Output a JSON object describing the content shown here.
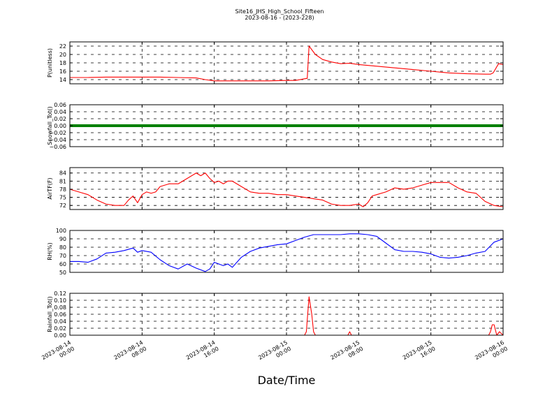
{
  "title": "Site16_JHS_High_School_Fifteen",
  "subtitle": "2023-08-16 - (2023-228)",
  "xlabel": "Date/Time",
  "x_ticks": [
    {
      "t": 0,
      "line1": "2023-08-14",
      "line2": "00:00"
    },
    {
      "t": 8,
      "line1": "2023-08-14",
      "line2": "08:00"
    },
    {
      "t": 16,
      "line1": "2023-08-14",
      "line2": "16:00"
    },
    {
      "t": 24,
      "line1": "2023-08-15",
      "line2": "00:00"
    },
    {
      "t": 32,
      "line1": "2023-08-15",
      "line2": "08:00"
    },
    {
      "t": 40,
      "line1": "2023-08-15",
      "line2": "16:00"
    },
    {
      "t": 48,
      "line1": "2023-08-16",
      "line2": "00:00"
    }
  ],
  "chart_data": [
    {
      "type": "line",
      "ylabel": "P(unitless)",
      "ylim": [
        13,
        23
      ],
      "yticks": [
        14,
        16,
        18,
        20,
        22
      ],
      "ytick_labels": [
        "14",
        "16",
        "18",
        "20",
        "22"
      ],
      "color": "#ff0000",
      "grid": true,
      "x_hours": [
        0,
        2,
        4,
        6,
        8,
        10,
        12,
        14,
        15,
        16,
        18,
        20,
        22,
        24,
        25,
        26,
        26.3,
        26.5,
        27.2,
        28,
        29,
        30,
        31,
        32,
        34,
        36,
        38,
        40,
        42,
        44,
        46,
        46.6,
        46.9,
        47.5,
        48
      ],
      "values": [
        14.5,
        14.5,
        14.6,
        14.6,
        14.6,
        14.6,
        14.5,
        14.4,
        14.0,
        13.7,
        13.7,
        13.7,
        13.7,
        13.8,
        13.8,
        14.2,
        14.3,
        22.0,
        20.0,
        18.8,
        18.2,
        17.8,
        17.9,
        17.6,
        17.2,
        16.8,
        16.4,
        16.0,
        15.6,
        15.4,
        15.3,
        15.3,
        15.6,
        17.8,
        17.6
      ]
    },
    {
      "type": "line",
      "ylabel": "Snowfall_Tot()",
      "ylim": [
        -0.06,
        0.06
      ],
      "yticks": [
        -0.06,
        -0.04,
        -0.02,
        0.0,
        0.02,
        0.04,
        0.06
      ],
      "ytick_labels": [
        "−0.06",
        "−0.04",
        "−0.02",
        "0.00",
        "0.02",
        "0.04",
        "0.06"
      ],
      "color": "#008000",
      "line_width": 4,
      "grid": true,
      "x_hours": [
        0,
        48
      ],
      "values": [
        0,
        0
      ]
    },
    {
      "type": "line",
      "ylabel": "AirTF(F)",
      "ylim": [
        70.5,
        86
      ],
      "yticks": [
        72,
        75,
        78,
        81,
        84
      ],
      "ytick_labels": [
        "72",
        "75",
        "78",
        "81",
        "84"
      ],
      "color": "#ff0000",
      "grid": true,
      "x_hours": [
        0,
        1,
        2,
        3,
        4,
        5,
        6,
        6.5,
        7,
        7.5,
        8,
        8.5,
        9,
        9.5,
        10,
        11,
        12,
        13,
        14,
        14.5,
        15,
        15.5,
        16,
        16.5,
        17,
        17.5,
        18,
        19,
        20,
        21,
        22,
        23,
        24,
        25,
        26,
        27,
        28,
        29,
        30,
        31,
        32,
        32.5,
        33,
        33.5,
        34,
        35,
        36,
        37,
        38,
        39,
        40,
        41,
        42,
        43,
        44,
        45,
        46,
        47,
        48
      ],
      "values": [
        78,
        77,
        76,
        74,
        72.5,
        72,
        72,
        74,
        75.5,
        73,
        76,
        77,
        76.5,
        77,
        79,
        80,
        80,
        82,
        84,
        83,
        84,
        82,
        80.5,
        81,
        80,
        81,
        81,
        79,
        77,
        76.5,
        76.5,
        76,
        76,
        75.5,
        75,
        74.5,
        74,
        72.5,
        72,
        72,
        72.5,
        71.5,
        73,
        75.5,
        76,
        77,
        78.5,
        78,
        78.5,
        79.5,
        80.5,
        80.5,
        80.5,
        78.5,
        77,
        76.5,
        73.5,
        72,
        71.5
      ]
    },
    {
      "type": "line",
      "ylabel": "RH(%)",
      "ylim": [
        50,
        100
      ],
      "yticks": [
        50,
        60,
        70,
        80,
        90,
        100
      ],
      "ytick_labels": [
        "50",
        "60",
        "70",
        "80",
        "90",
        "100"
      ],
      "color": "#0000ff",
      "grid": true,
      "x_hours": [
        0,
        1,
        2,
        3,
        4,
        5,
        6,
        7,
        7.5,
        8,
        9,
        10,
        11,
        12,
        13,
        14,
        15,
        15.5,
        16,
        17,
        17.5,
        18,
        19,
        20,
        21,
        22,
        23,
        24,
        25,
        26,
        27,
        28,
        29,
        30,
        31,
        32,
        33,
        34,
        35,
        36,
        37,
        38,
        39,
        40,
        41,
        42,
        43,
        44,
        45,
        46,
        47,
        48
      ],
      "values": [
        63,
        63,
        62,
        66,
        73,
        74,
        76,
        79,
        74,
        76,
        74,
        65,
        58,
        54,
        60,
        55,
        51,
        54,
        62,
        58,
        60,
        56,
        68,
        75,
        79,
        81,
        83,
        84,
        88,
        92,
        95,
        95,
        95,
        95,
        96,
        96,
        95,
        93,
        85,
        77,
        75,
        75,
        74,
        72,
        68,
        67,
        68,
        70,
        73,
        75,
        86,
        90
      ]
    },
    {
      "type": "line",
      "ylabel": "Rainfall_Tot()",
      "ylim": [
        0,
        0.12
      ],
      "yticks": [
        0,
        0.02,
        0.04,
        0.06,
        0.08,
        0.1,
        0.12
      ],
      "ytick_labels": [
        "0.00",
        "0.02",
        "0.04",
        "0.06",
        "0.08",
        "0.10",
        "0.12"
      ],
      "color": "#ff0000",
      "grid": true,
      "x_hours": [
        0,
        26.0,
        26.2,
        26.5,
        26.8,
        27.0,
        27.2,
        30.8,
        31.0,
        31.2,
        46.4,
        46.6,
        46.8,
        47.0,
        47.3,
        47.6,
        48
      ],
      "values": [
        0,
        0,
        0.01,
        0.11,
        0.06,
        0.01,
        0,
        0,
        0.01,
        0,
        0,
        0.01,
        0.03,
        0.03,
        0,
        0.01,
        0
      ]
    }
  ]
}
